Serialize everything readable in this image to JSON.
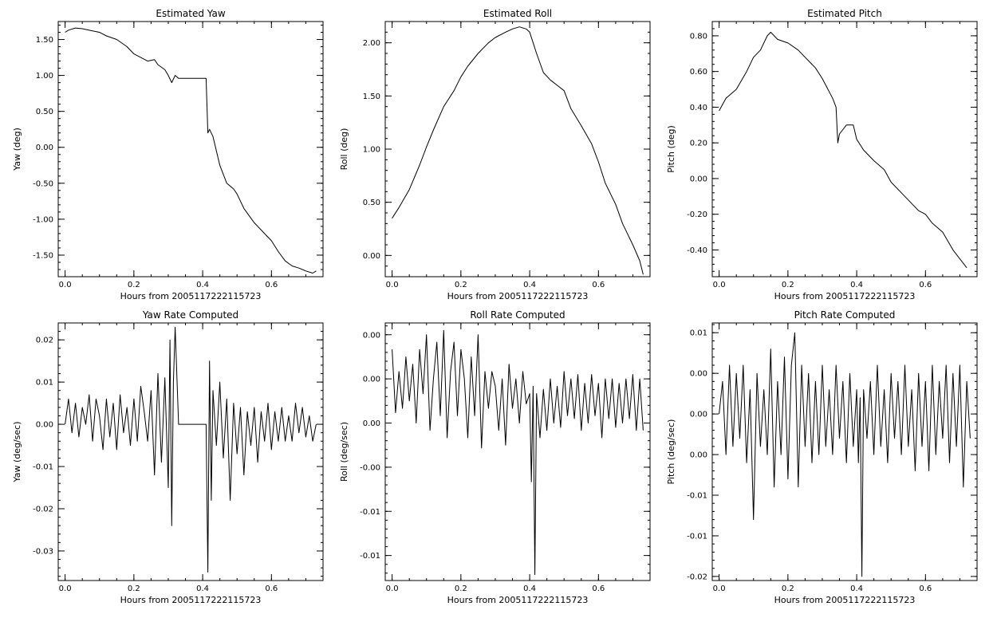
{
  "figure": {
    "background": "#ffffff",
    "line_color": "#000000"
  },
  "chart_data": [
    {
      "type": "line",
      "title": "Estimated Yaw",
      "xlabel": "Hours from 2005117222115723",
      "ylabel": "Yaw (deg)",
      "xlim": [
        -0.02,
        0.75
      ],
      "ylim": [
        -1.8,
        1.75
      ],
      "xticks": [
        0.0,
        0.2,
        0.4,
        0.6
      ],
      "xtick_labels": [
        "0.0",
        "0.2",
        "0.4",
        "0.6"
      ],
      "yticks": [
        -1.5,
        -1.0,
        -0.5,
        0.0,
        0.5,
        1.0,
        1.5
      ],
      "ytick_labels": [
        "-1.50",
        "-1.00",
        "-0.50",
        "0.00",
        "0.50",
        "1.00",
        "1.50"
      ],
      "grid": false,
      "series": [
        {
          "x": [
            0.0,
            0.01,
            0.03,
            0.05,
            0.08,
            0.1,
            0.12,
            0.15,
            0.18,
            0.2,
            0.22,
            0.24,
            0.26,
            0.27,
            0.29,
            0.3,
            0.31,
            0.32,
            0.33,
            0.37,
            0.41,
            0.415,
            0.42,
            0.43,
            0.44,
            0.45,
            0.47,
            0.49,
            0.5,
            0.52,
            0.55,
            0.57,
            0.6,
            0.62,
            0.64,
            0.66,
            0.68,
            0.7,
            0.72,
            0.73
          ],
          "y": [
            1.6,
            1.63,
            1.66,
            1.65,
            1.62,
            1.6,
            1.55,
            1.5,
            1.4,
            1.3,
            1.25,
            1.2,
            1.22,
            1.15,
            1.08,
            1.0,
            0.9,
            1.0,
            0.96,
            0.96,
            0.96,
            0.2,
            0.25,
            0.15,
            -0.05,
            -0.25,
            -0.5,
            -0.58,
            -0.65,
            -0.85,
            -1.05,
            -1.15,
            -1.3,
            -1.45,
            -1.58,
            -1.65,
            -1.68,
            -1.72,
            -1.75,
            -1.72
          ]
        }
      ]
    },
    {
      "type": "line",
      "title": "Estimated Roll",
      "xlabel": "Hours from 2005117222115723",
      "ylabel": "Roll (deg)",
      "xlim": [
        -0.02,
        0.75
      ],
      "ylim": [
        -0.2,
        2.2
      ],
      "xticks": [
        0.0,
        0.2,
        0.4,
        0.6
      ],
      "xtick_labels": [
        "0.0",
        "0.2",
        "0.4",
        "0.6"
      ],
      "yticks": [
        0.0,
        0.5,
        1.0,
        1.5,
        2.0
      ],
      "ytick_labels": [
        "0.00",
        "0.50",
        "1.00",
        "1.50",
        "2.00"
      ],
      "grid": false,
      "series": [
        {
          "x": [
            0.0,
            0.02,
            0.05,
            0.08,
            0.1,
            0.12,
            0.15,
            0.18,
            0.2,
            0.22,
            0.25,
            0.28,
            0.3,
            0.33,
            0.35,
            0.37,
            0.39,
            0.4,
            0.42,
            0.44,
            0.46,
            0.48,
            0.5,
            0.52,
            0.55,
            0.58,
            0.6,
            0.62,
            0.65,
            0.67,
            0.7,
            0.72,
            0.73
          ],
          "y": [
            0.35,
            0.45,
            0.62,
            0.85,
            1.02,
            1.18,
            1.4,
            1.55,
            1.68,
            1.78,
            1.9,
            2.0,
            2.05,
            2.1,
            2.13,
            2.15,
            2.13,
            2.1,
            1.9,
            1.72,
            1.65,
            1.6,
            1.55,
            1.38,
            1.22,
            1.05,
            0.88,
            0.68,
            0.48,
            0.3,
            0.1,
            -0.05,
            -0.18
          ]
        }
      ]
    },
    {
      "type": "line",
      "title": "Estimated Pitch",
      "xlabel": "Hours from 2005117222115723",
      "ylabel": "Pitch (deg)",
      "xlim": [
        -0.02,
        0.75
      ],
      "ylim": [
        -0.55,
        0.88
      ],
      "xticks": [
        0.0,
        0.2,
        0.4,
        0.6
      ],
      "xtick_labels": [
        "0.0",
        "0.2",
        "0.4",
        "0.6"
      ],
      "yticks": [
        -0.4,
        -0.2,
        0.0,
        0.2,
        0.4,
        0.6,
        0.8
      ],
      "ytick_labels": [
        "-0.40",
        "-0.20",
        "0.00",
        "0.20",
        "0.40",
        "0.60",
        "0.80"
      ],
      "grid": false,
      "series": [
        {
          "x": [
            0.0,
            0.02,
            0.05,
            0.08,
            0.1,
            0.12,
            0.14,
            0.15,
            0.17,
            0.2,
            0.23,
            0.25,
            0.28,
            0.3,
            0.33,
            0.34,
            0.345,
            0.35,
            0.37,
            0.39,
            0.4,
            0.42,
            0.45,
            0.48,
            0.5,
            0.53,
            0.55,
            0.58,
            0.6,
            0.62,
            0.65,
            0.68,
            0.7,
            0.72
          ],
          "y": [
            0.38,
            0.45,
            0.5,
            0.6,
            0.68,
            0.72,
            0.8,
            0.82,
            0.78,
            0.76,
            0.72,
            0.68,
            0.62,
            0.56,
            0.45,
            0.4,
            0.2,
            0.25,
            0.3,
            0.3,
            0.22,
            0.16,
            0.1,
            0.05,
            -0.02,
            -0.08,
            -0.12,
            -0.18,
            -0.2,
            -0.25,
            -0.3,
            -0.4,
            -0.45,
            -0.5
          ]
        }
      ]
    },
    {
      "type": "line",
      "title": "Yaw Rate Computed",
      "xlabel": "Hours from 2005117222115723",
      "ylabel": "Yaw (deg/sec)",
      "xlim": [
        -0.02,
        0.75
      ],
      "ylim": [
        -0.037,
        0.024
      ],
      "xticks": [
        0.0,
        0.2,
        0.4,
        0.6
      ],
      "xtick_labels": [
        "0.0",
        "0.2",
        "0.4",
        "0.6"
      ],
      "yticks": [
        -0.03,
        -0.02,
        -0.01,
        0.0,
        0.01,
        0.02
      ],
      "ytick_labels": [
        "-0.03",
        "-0.02",
        "-0.01",
        "0.00",
        "0.01",
        "0.02"
      ],
      "grid": false,
      "series": [
        {
          "x": [
            0.0,
            0.01,
            0.02,
            0.03,
            0.04,
            0.05,
            0.06,
            0.07,
            0.08,
            0.09,
            0.1,
            0.11,
            0.12,
            0.13,
            0.14,
            0.15,
            0.16,
            0.17,
            0.18,
            0.19,
            0.2,
            0.21,
            0.22,
            0.23,
            0.24,
            0.25,
            0.26,
            0.27,
            0.28,
            0.29,
            0.3,
            0.305,
            0.31,
            0.315,
            0.32,
            0.33,
            0.34,
            0.36,
            0.38,
            0.4,
            0.41,
            0.415,
            0.42,
            0.425,
            0.43,
            0.44,
            0.45,
            0.46,
            0.47,
            0.48,
            0.49,
            0.5,
            0.51,
            0.52,
            0.53,
            0.54,
            0.55,
            0.56,
            0.57,
            0.58,
            0.59,
            0.6,
            0.61,
            0.62,
            0.63,
            0.64,
            0.65,
            0.66,
            0.67,
            0.68,
            0.69,
            0.7,
            0.71,
            0.72,
            0.73
          ],
          "y": [
            0.0,
            0.006,
            -0.002,
            0.005,
            -0.003,
            0.004,
            0.0,
            0.007,
            -0.004,
            0.006,
            0.002,
            -0.006,
            0.006,
            -0.003,
            0.005,
            -0.006,
            0.007,
            -0.002,
            0.004,
            -0.005,
            0.006,
            -0.004,
            0.009,
            0.003,
            -0.004,
            0.008,
            -0.012,
            0.012,
            -0.009,
            0.011,
            -0.015,
            0.02,
            -0.024,
            0.01,
            0.023,
            0.0,
            0.0,
            0.0,
            0.0,
            0.0,
            0.0,
            -0.035,
            0.015,
            -0.018,
            0.008,
            -0.005,
            0.01,
            -0.008,
            0.006,
            -0.018,
            0.005,
            -0.007,
            0.004,
            -0.012,
            0.003,
            -0.005,
            0.004,
            -0.009,
            0.003,
            -0.004,
            0.005,
            -0.006,
            0.003,
            -0.004,
            0.004,
            -0.004,
            0.002,
            -0.004,
            0.005,
            -0.002,
            0.004,
            -0.003,
            0.002,
            -0.004,
            0.0
          ]
        }
      ]
    },
    {
      "type": "line",
      "title": "Roll Rate Computed",
      "xlabel": "Hours from 2005117222115723",
      "ylabel": "Roll (deg/sec)",
      "xlim": [
        -0.02,
        0.75
      ],
      "ylim": [
        -0.0122,
        0.0053
      ],
      "xticks": [
        0.0,
        0.2,
        0.4,
        0.6
      ],
      "xtick_labels": [
        "0.0",
        "0.2",
        "0.4",
        "0.6"
      ],
      "yticks": [
        -0.0105,
        -0.0075,
        -0.0045,
        -0.0015,
        0.0015,
        0.0045
      ],
      "ytick_labels": [
        "-0.01",
        "-0.01",
        "-0.00",
        "0.00",
        "0.00",
        "0.00"
      ],
      "grid": false,
      "series": [
        {
          "x": [
            0.0,
            0.01,
            0.02,
            0.03,
            0.04,
            0.05,
            0.06,
            0.07,
            0.08,
            0.09,
            0.1,
            0.11,
            0.12,
            0.13,
            0.14,
            0.15,
            0.16,
            0.17,
            0.18,
            0.19,
            0.2,
            0.21,
            0.22,
            0.23,
            0.24,
            0.25,
            0.26,
            0.27,
            0.28,
            0.29,
            0.3,
            0.31,
            0.32,
            0.33,
            0.34,
            0.35,
            0.36,
            0.37,
            0.38,
            0.39,
            0.4,
            0.405,
            0.41,
            0.415,
            0.42,
            0.43,
            0.44,
            0.45,
            0.46,
            0.47,
            0.48,
            0.49,
            0.5,
            0.51,
            0.52,
            0.53,
            0.54,
            0.55,
            0.56,
            0.57,
            0.58,
            0.59,
            0.6,
            0.61,
            0.62,
            0.63,
            0.64,
            0.65,
            0.66,
            0.67,
            0.68,
            0.69,
            0.7,
            0.71,
            0.72,
            0.73
          ],
          "y": [
            0.0035,
            -0.0008,
            0.002,
            -0.0005,
            0.003,
            0.0,
            0.0025,
            -0.0015,
            0.0035,
            0.0005,
            0.0045,
            -0.002,
            0.0015,
            0.004,
            -0.001,
            0.0048,
            -0.0025,
            0.002,
            0.004,
            -0.001,
            0.0035,
            0.0015,
            -0.0025,
            0.003,
            -0.001,
            0.0045,
            -0.0032,
            0.002,
            -0.0005,
            0.002,
            0.001,
            -0.002,
            0.0015,
            -0.003,
            0.0025,
            -0.0005,
            0.0015,
            -0.0015,
            0.002,
            -0.0002,
            0.0005,
            -0.0055,
            0.001,
            -0.0118,
            0.0005,
            -0.0025,
            0.0008,
            -0.002,
            0.0015,
            -0.0015,
            0.001,
            -0.0018,
            0.002,
            -0.001,
            0.0015,
            -0.0012,
            0.0018,
            -0.002,
            0.0012,
            -0.0015,
            0.0018,
            -0.001,
            0.0012,
            -0.0025,
            0.0015,
            -0.0012,
            0.0015,
            -0.0018,
            0.0012,
            -0.0015,
            0.0015,
            -0.0012,
            0.0018,
            -0.002,
            0.0015,
            -0.002
          ]
        }
      ]
    },
    {
      "type": "line",
      "title": "Pitch Rate Computed",
      "xlabel": "Hours from 2005117222115723",
      "ylabel": "Pitch (deg/sec)",
      "xlim": [
        -0.02,
        0.75
      ],
      "ylim": [
        -0.0205,
        0.0112
      ],
      "xticks": [
        0.0,
        0.2,
        0.4,
        0.6
      ],
      "xtick_labels": [
        "0.0",
        "0.2",
        "0.4",
        "0.6"
      ],
      "yticks": [
        -0.02,
        -0.015,
        -0.01,
        -0.005,
        0.0,
        0.005,
        0.01
      ],
      "ytick_labels": [
        "-0.02",
        "-0.01",
        "-0.01",
        "0.00",
        "0.00",
        "0.00",
        "0.01"
      ],
      "grid": false,
      "series": [
        {
          "x": [
            0.0,
            0.01,
            0.02,
            0.03,
            0.04,
            0.05,
            0.06,
            0.07,
            0.08,
            0.09,
            0.1,
            0.11,
            0.12,
            0.13,
            0.14,
            0.15,
            0.16,
            0.17,
            0.18,
            0.19,
            0.2,
            0.21,
            0.22,
            0.23,
            0.24,
            0.25,
            0.26,
            0.27,
            0.28,
            0.29,
            0.3,
            0.31,
            0.32,
            0.33,
            0.34,
            0.35,
            0.36,
            0.37,
            0.38,
            0.39,
            0.4,
            0.405,
            0.41,
            0.415,
            0.42,
            0.43,
            0.44,
            0.45,
            0.46,
            0.47,
            0.48,
            0.49,
            0.5,
            0.51,
            0.52,
            0.53,
            0.54,
            0.55,
            0.56,
            0.57,
            0.58,
            0.59,
            0.6,
            0.61,
            0.62,
            0.63,
            0.64,
            0.65,
            0.66,
            0.67,
            0.68,
            0.69,
            0.7,
            0.71,
            0.72,
            0.73
          ],
          "y": [
            0.0,
            0.004,
            -0.005,
            0.006,
            -0.004,
            0.005,
            -0.003,
            0.006,
            -0.006,
            0.003,
            -0.013,
            0.005,
            -0.004,
            0.003,
            -0.005,
            0.008,
            -0.009,
            0.004,
            -0.005,
            0.007,
            -0.008,
            0.006,
            0.01,
            -0.009,
            0.006,
            -0.004,
            0.005,
            -0.006,
            0.004,
            -0.005,
            0.006,
            -0.004,
            0.003,
            -0.005,
            0.006,
            -0.003,
            0.004,
            -0.006,
            0.005,
            -0.004,
            0.003,
            -0.006,
            0.002,
            -0.02,
            0.003,
            -0.003,
            0.004,
            -0.005,
            0.006,
            -0.004,
            0.003,
            -0.006,
            0.005,
            -0.003,
            0.004,
            -0.005,
            0.006,
            -0.004,
            0.003,
            -0.007,
            0.005,
            -0.004,
            0.004,
            -0.007,
            0.006,
            -0.005,
            0.004,
            -0.003,
            0.006,
            -0.006,
            0.005,
            -0.004,
            0.006,
            -0.009,
            0.004,
            -0.003
          ]
        }
      ]
    }
  ]
}
